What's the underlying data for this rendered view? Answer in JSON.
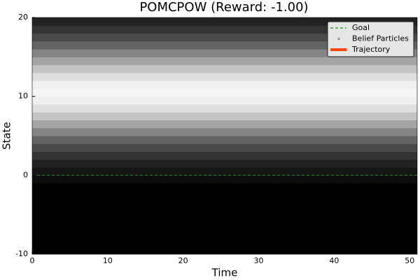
{
  "chart_data": {
    "type": "heatmap",
    "title": "POMCPOW (Reward:    -1.00)",
    "x_label": "Time",
    "y_label": "State",
    "xlim": [
      0,
      51
    ],
    "xticks": [
      0,
      10,
      20,
      30,
      40,
      50
    ],
    "ylim": [
      -10,
      20
    ],
    "yticks": [
      -10,
      0,
      10,
      20
    ],
    "heatmap": {
      "bins": [
        -10,
        -9,
        -8,
        -7,
        -6,
        -5,
        -4,
        -3,
        -2,
        -1,
        0,
        1,
        2,
        3,
        4,
        5,
        6,
        7,
        8,
        9,
        10,
        11,
        12,
        13,
        14,
        15,
        16,
        17,
        18,
        19,
        20
      ],
      "values": [
        0,
        0,
        0,
        0,
        0,
        0,
        0,
        0,
        0,
        0.05,
        0.09,
        0.14,
        0.21,
        0.3,
        0.41,
        0.54,
        0.67,
        0.8,
        0.91,
        0.98,
        1,
        0.98,
        0.91,
        0.8,
        0.67,
        0.54,
        0.41,
        0.3,
        0.21,
        0.14
      ]
    },
    "series": [
      {
        "name": "Goal",
        "color": "#1f8a1f",
        "style": "dashed",
        "y": 0
      },
      {
        "name": "Belief Particles",
        "color": "#9a9a9a",
        "style": "points"
      },
      {
        "name": "Trajectory",
        "color": "#ff4500",
        "style": "solid"
      }
    ],
    "legend": "upper-right"
  }
}
